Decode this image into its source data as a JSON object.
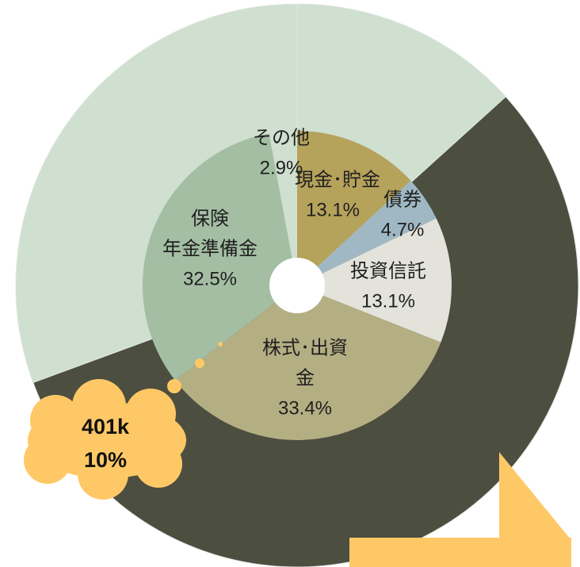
{
  "chart_data": {
    "type": "pie",
    "outer": {
      "values": [
        13.3,
        56.1,
        30.6
      ],
      "colors": [
        "#cfdfd0",
        "#4c4e40",
        "#cfdfd0"
      ]
    },
    "categories": [
      [
        "現金･貯金"
      ],
      [
        "債券"
      ],
      [
        "投資信託"
      ],
      [
        "株式･出資",
        "金"
      ],
      [
        "保険",
        "年金準備金"
      ],
      [
        "その他"
      ]
    ],
    "values": [
      13.1,
      4.7,
      13.1,
      33.4,
      32.5,
      2.9
    ],
    "value_labels": [
      "13.1%",
      "4.7%",
      "13.1%",
      "33.4%",
      "32.5%",
      "2.9%"
    ],
    "colors": [
      "#b5a25b",
      "#a0b8c4",
      "#e3e3dc",
      "#b4ae83",
      "#a4bea3",
      "#cfdfd0"
    ],
    "annotation": [
      "401k",
      "10%"
    ]
  }
}
